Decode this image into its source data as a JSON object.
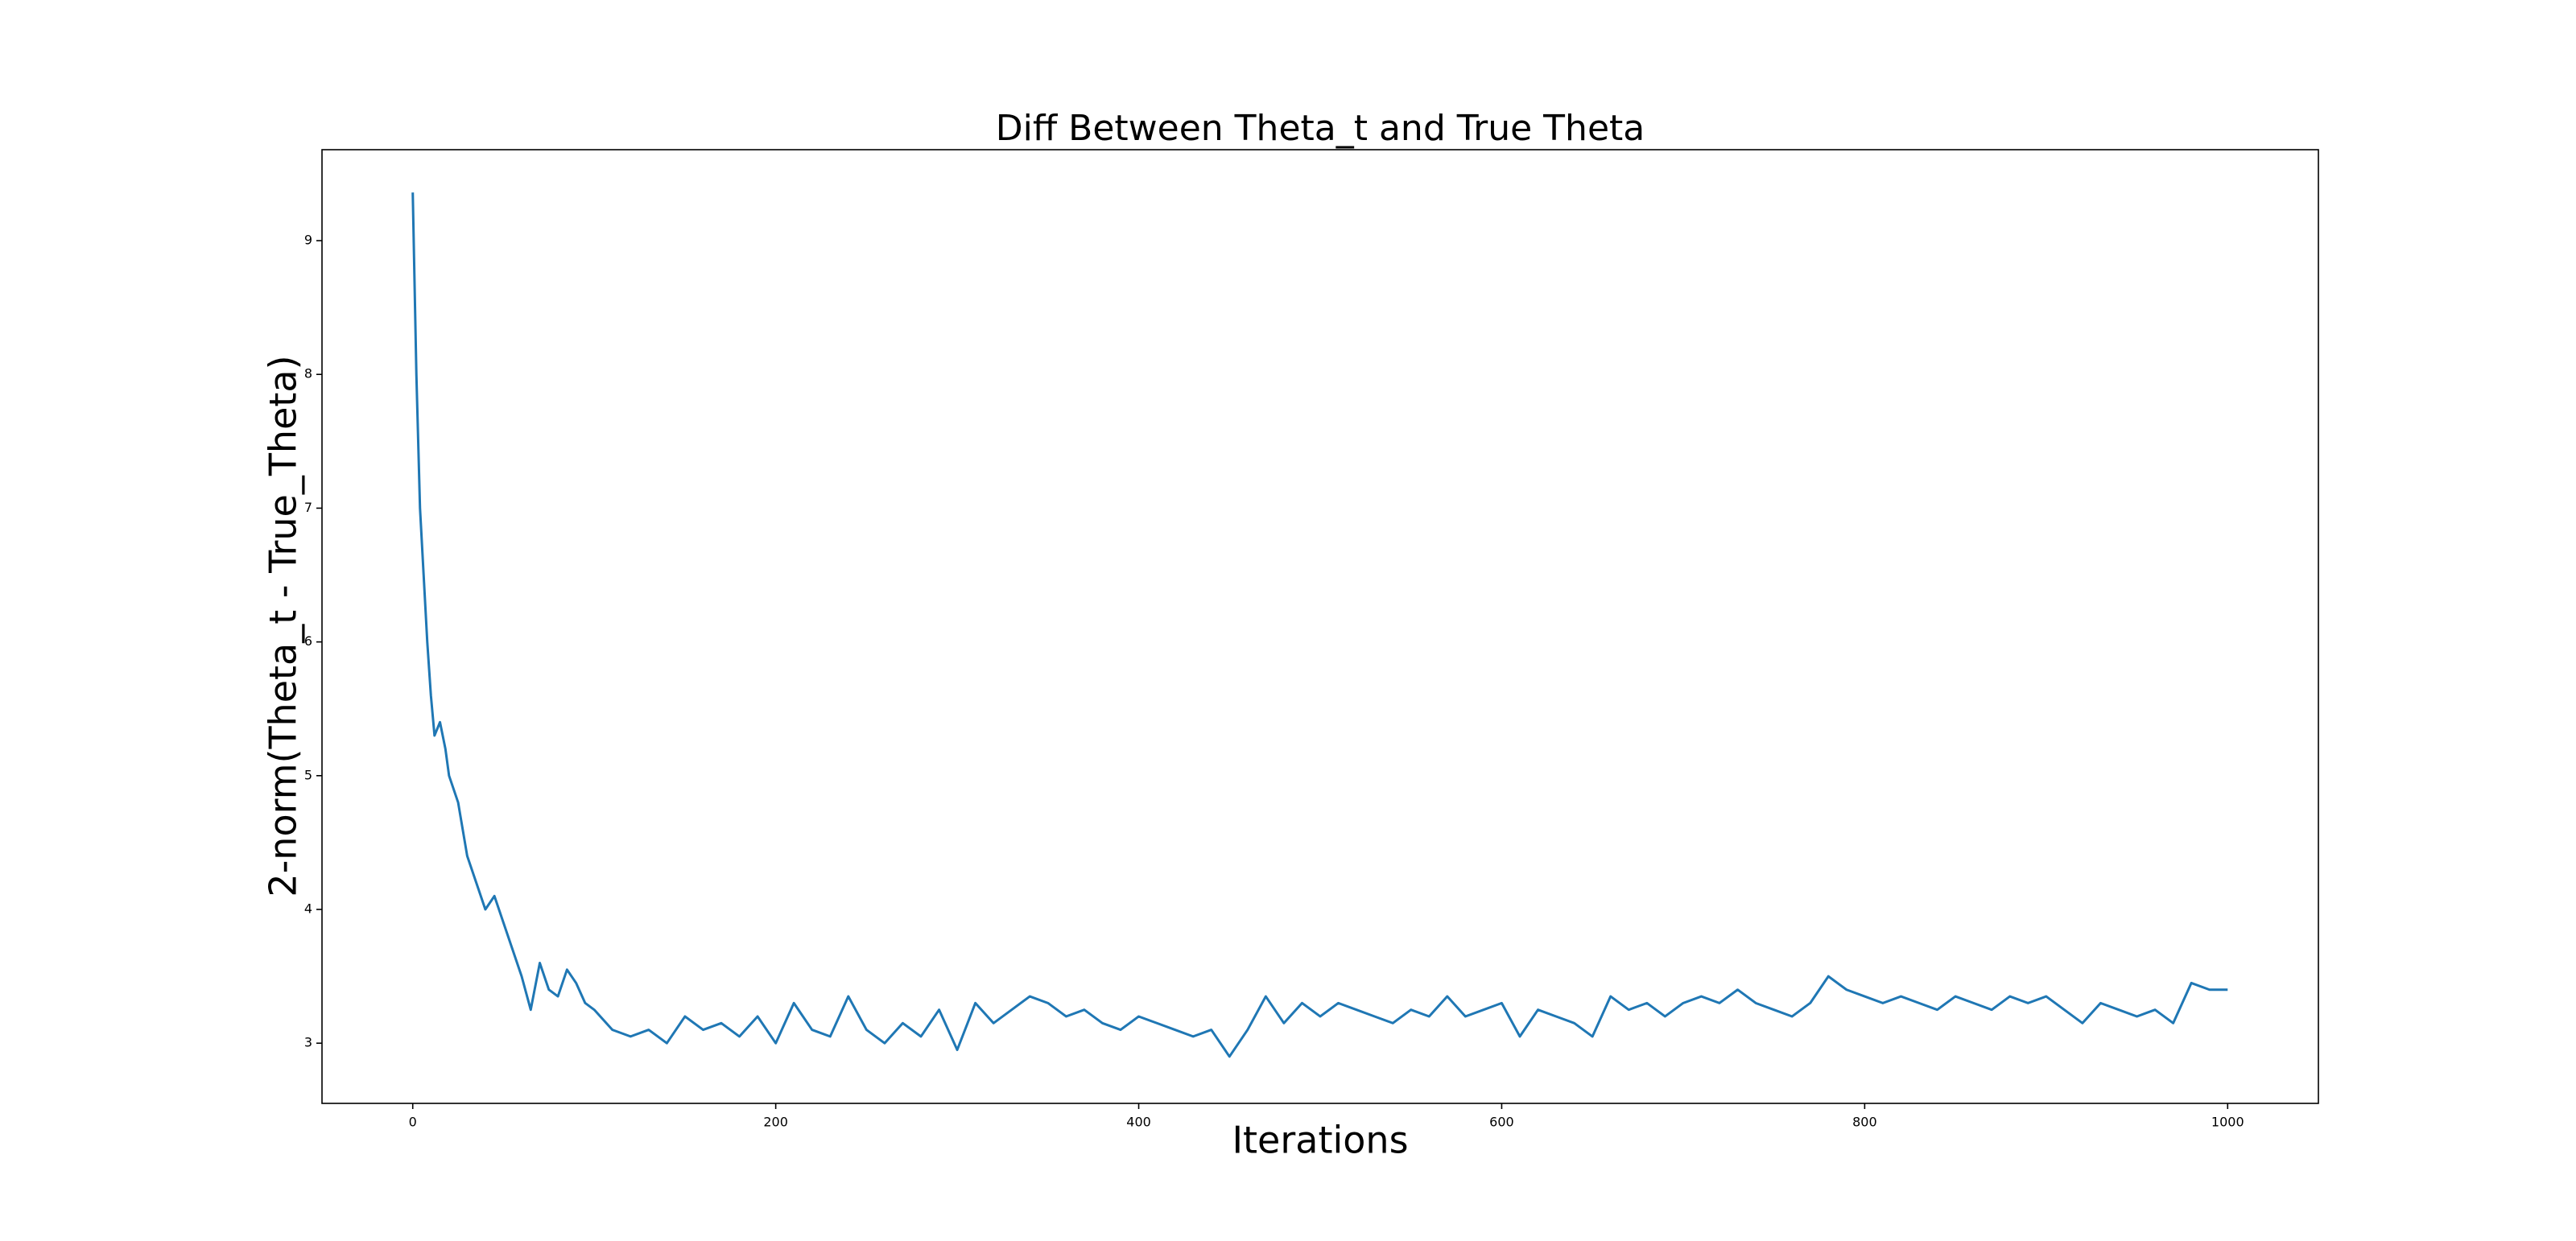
{
  "chart_data": {
    "type": "line",
    "title": "Diff Between Theta_t and True Theta",
    "xlabel": "Iterations",
    "ylabel": "2-norm(Theta_t - True_Theta)",
    "color": "#1f77b4",
    "xlim": [
      -50,
      1050
    ],
    "ylim": [
      2.55,
      9.68
    ],
    "xticks": [
      0,
      200,
      400,
      600,
      800,
      1000
    ],
    "yticks": [
      3,
      4,
      5,
      6,
      7,
      8,
      9
    ],
    "x": [
      0,
      2,
      4,
      6,
      8,
      10,
      12,
      15,
      18,
      20,
      25,
      30,
      35,
      40,
      45,
      50,
      55,
      60,
      65,
      70,
      75,
      80,
      85,
      90,
      95,
      100,
      110,
      120,
      130,
      140,
      150,
      160,
      170,
      180,
      190,
      200,
      210,
      220,
      230,
      240,
      250,
      260,
      270,
      280,
      290,
      300,
      310,
      320,
      330,
      340,
      350,
      360,
      370,
      380,
      390,
      400,
      410,
      420,
      430,
      440,
      450,
      460,
      470,
      480,
      490,
      500,
      510,
      520,
      530,
      540,
      550,
      560,
      570,
      580,
      590,
      600,
      610,
      620,
      630,
      640,
      650,
      660,
      670,
      680,
      690,
      700,
      710,
      720,
      730,
      740,
      750,
      760,
      770,
      780,
      790,
      800,
      810,
      820,
      830,
      840,
      850,
      860,
      870,
      880,
      890,
      900,
      910,
      920,
      930,
      940,
      950,
      960,
      970,
      980,
      990,
      1000
    ],
    "values": [
      9.36,
      8.0,
      7.0,
      6.5,
      6.0,
      5.6,
      5.3,
      5.4,
      5.2,
      5.0,
      4.8,
      4.4,
      4.2,
      4.0,
      4.1,
      3.9,
      3.7,
      3.5,
      3.25,
      3.6,
      3.4,
      3.35,
      3.55,
      3.45,
      3.3,
      3.25,
      3.1,
      3.05,
      3.1,
      3.0,
      3.2,
      3.1,
      3.15,
      3.05,
      3.2,
      3.0,
      3.3,
      3.1,
      3.05,
      3.35,
      3.1,
      3.0,
      3.15,
      3.05,
      3.25,
      2.95,
      3.3,
      3.15,
      3.25,
      3.35,
      3.3,
      3.2,
      3.25,
      3.15,
      3.1,
      3.2,
      3.15,
      3.1,
      3.05,
      3.1,
      2.9,
      3.1,
      3.35,
      3.15,
      3.3,
      3.2,
      3.3,
      3.25,
      3.2,
      3.15,
      3.25,
      3.2,
      3.35,
      3.2,
      3.25,
      3.3,
      3.05,
      3.25,
      3.2,
      3.15,
      3.05,
      3.35,
      3.25,
      3.3,
      3.2,
      3.3,
      3.35,
      3.3,
      3.4,
      3.3,
      3.25,
      3.2,
      3.3,
      3.5,
      3.4,
      3.35,
      3.3,
      3.35,
      3.3,
      3.25,
      3.35,
      3.3,
      3.25,
      3.35,
      3.3,
      3.35,
      3.25,
      3.15,
      3.3,
      3.25,
      3.2,
      3.25,
      3.15,
      3.45,
      3.4,
      3.4
    ]
  }
}
